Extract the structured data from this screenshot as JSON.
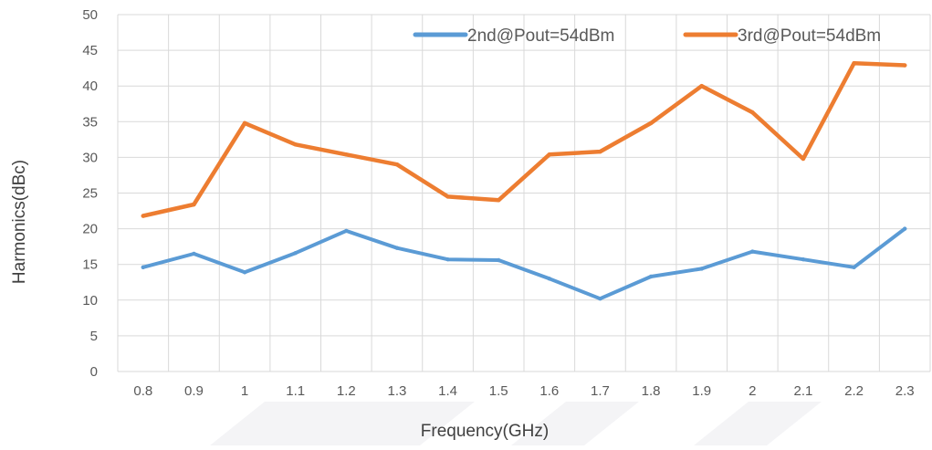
{
  "chart_data": {
    "type": "line",
    "title": "",
    "xlabel": "Frequency(GHz)",
    "ylabel": "Harmonics(dBc)",
    "categories": [
      "0.8",
      "0.9",
      "1",
      "1.1",
      "1.2",
      "1.3",
      "1.4",
      "1.5",
      "1.6",
      "1.7",
      "1.8",
      "1.9",
      "2",
      "2.1",
      "2.2",
      "2.3"
    ],
    "ylim": [
      0,
      50
    ],
    "yticks": [
      "0",
      "5",
      "10",
      "15",
      "20",
      "25",
      "30",
      "35",
      "40",
      "45",
      "50"
    ],
    "grid": "on",
    "legend_position": "top-right",
    "series": [
      {
        "name": "2nd@Pout=54dBm",
        "color": "#5B9BD5",
        "values": [
          14.6,
          16.5,
          13.9,
          16.6,
          19.7,
          17.3,
          15.7,
          15.6,
          13.0,
          10.2,
          13.3,
          14.4,
          16.8,
          15.7,
          14.6,
          20.0
        ]
      },
      {
        "name": "3rd@Pout=54dBm",
        "color": "#ED7D31",
        "values": [
          21.8,
          23.4,
          34.8,
          31.8,
          30.4,
          29.0,
          24.5,
          24.0,
          30.4,
          30.8,
          34.8,
          40.0,
          36.3,
          29.8,
          43.2,
          42.9
        ]
      }
    ]
  },
  "style": {
    "grid_color": "#D9D9D9",
    "watermark_color": "#F4F4F6"
  }
}
